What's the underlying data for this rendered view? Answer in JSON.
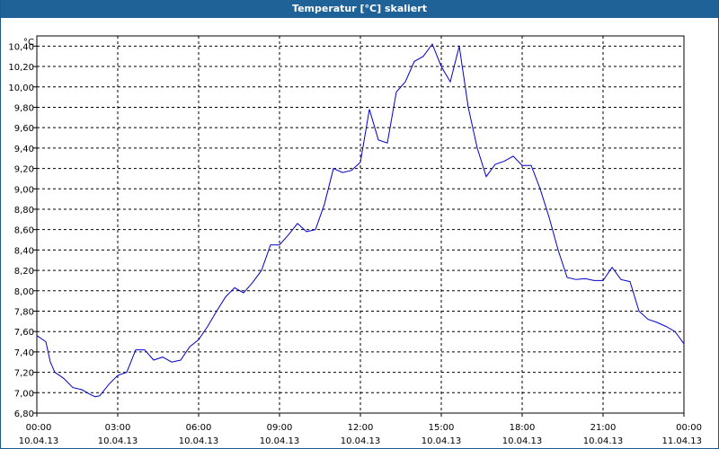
{
  "window": {
    "title": "Temperatur [°C] skaliert"
  },
  "chart_data": {
    "type": "line",
    "title": "Temperatur [°C] skaliert",
    "ylabel": "°C",
    "xlabel": "",
    "ylim": [
      6.8,
      10.5
    ],
    "y_ticks": [
      "6,80",
      "7,00",
      "7,20",
      "7,40",
      "7,60",
      "7,80",
      "8,00",
      "8,20",
      "8,40",
      "8,60",
      "8,80",
      "9,00",
      "9,20",
      "9,40",
      "9,60",
      "9,80",
      "10,00",
      "10,20",
      "10,40"
    ],
    "x_ticks": [
      {
        "time": "00:00",
        "date": "10.04.13"
      },
      {
        "time": "03:00",
        "date": "10.04.13"
      },
      {
        "time": "06:00",
        "date": "10.04.13"
      },
      {
        "time": "09:00",
        "date": "10.04.13"
      },
      {
        "time": "12:00",
        "date": "10.04.13"
      },
      {
        "time": "15:00",
        "date": "10.04.13"
      },
      {
        "time": "18:00",
        "date": "10.04.13"
      },
      {
        "time": "21:00",
        "date": "10.04.13"
      },
      {
        "time": "00:00",
        "date": "11.04.13"
      }
    ],
    "grid": true,
    "line_color": "#0000cc",
    "series": [
      {
        "x": [
          "00:00",
          "00:20",
          "00:30",
          "00:40",
          "01:00",
          "01:20",
          "01:40",
          "02:00",
          "02:10",
          "02:20",
          "02:40",
          "03:00",
          "03:20",
          "03:40",
          "04:00",
          "04:20",
          "04:40",
          "05:00",
          "05:20",
          "05:40",
          "06:00",
          "06:20",
          "06:40",
          "07:00",
          "07:20",
          "07:40",
          "08:00",
          "08:20",
          "08:40",
          "09:00",
          "09:20",
          "09:40",
          "10:00",
          "10:20",
          "10:40",
          "11:00",
          "11:20",
          "11:40",
          "12:00",
          "12:20",
          "12:40",
          "13:00",
          "13:20",
          "13:40",
          "14:00",
          "14:20",
          "14:40",
          "15:00",
          "15:20",
          "15:40",
          "16:00",
          "16:20",
          "16:40",
          "17:00",
          "17:20",
          "17:40",
          "18:00",
          "18:20",
          "18:40",
          "19:00",
          "19:20",
          "19:40",
          "20:00",
          "20:20",
          "20:40",
          "21:00",
          "21:20",
          "21:40",
          "22:00",
          "22:20",
          "22:40",
          "23:00",
          "23:20",
          "23:40",
          "24:00"
        ],
        "y": [
          7.56,
          7.5,
          7.3,
          7.2,
          7.14,
          7.05,
          7.03,
          6.98,
          6.96,
          6.97,
          7.08,
          7.17,
          7.2,
          7.42,
          7.42,
          7.32,
          7.35,
          7.3,
          7.32,
          7.45,
          7.52,
          7.65,
          7.8,
          7.94,
          8.03,
          7.98,
          8.08,
          8.2,
          8.45,
          8.45,
          8.55,
          8.66,
          8.58,
          8.6,
          8.85,
          9.2,
          9.16,
          9.18,
          9.26,
          9.78,
          9.48,
          9.45,
          9.95,
          10.05,
          10.25,
          10.3,
          10.42,
          10.2,
          10.05,
          10.4,
          9.8,
          9.4,
          9.12,
          9.24,
          9.27,
          9.32,
          9.23,
          9.23,
          9.0,
          8.72,
          8.4,
          8.13,
          8.11,
          8.12,
          8.1,
          8.1,
          8.23,
          8.11,
          8.09,
          7.8,
          7.72,
          7.69,
          7.65,
          7.6,
          7.48
        ]
      }
    ]
  }
}
